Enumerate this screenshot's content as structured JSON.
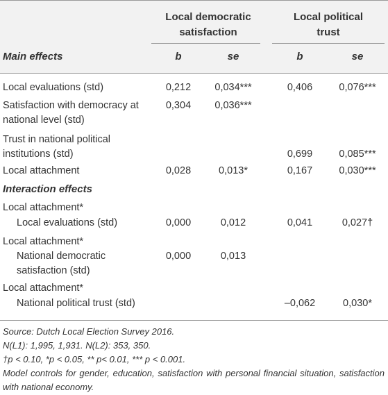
{
  "header": {
    "groups": [
      "Local democratic satisfaction",
      "Local political trust"
    ],
    "section": "Main effects",
    "columns": [
      "b",
      "se",
      "b",
      "se"
    ]
  },
  "main_rows": [
    {
      "label": "Local evaluations (std)",
      "cells": [
        "0,212",
        "0,034***",
        "0,406",
        "0,076***"
      ]
    },
    {
      "label": "Satisfaction with democracy at national level (std)",
      "cells": [
        "0,304",
        "0,036***",
        null,
        null
      ]
    },
    {
      "label": "Trust in national political institutions (std)",
      "cells": [
        null,
        null,
        "0,699",
        "0,085***"
      ]
    },
    {
      "label": "Local attachment",
      "cells": [
        "0,028",
        "0,013*",
        "0,167",
        "0,030***"
      ]
    }
  ],
  "interaction_heading": "Interaction effects",
  "interaction_rows": [
    {
      "label": "Local attachment*",
      "sublabel": "Local evaluations (std)",
      "cells": [
        "0,000",
        "0,012",
        "0,041",
        "0,027†"
      ]
    },
    {
      "label": "Local attachment*",
      "sublabel": "National democratic satisfaction (std)",
      "cells": [
        "0,000",
        "0,013",
        null,
        null
      ]
    },
    {
      "label": "Local attachment*",
      "sublabel": "National political trust (std)",
      "cells": [
        null,
        null,
        "–0,062",
        "0,030*"
      ]
    }
  ],
  "notes": [
    "Source: Dutch Local Election Survey 2016.",
    "N(L1): 1,995, 1,931. N(L2): 353, 350.",
    "†p < 0.10, *p < 0.05, ** p< 0.01, *** p < 0.001.",
    "Model controls for gender, education, satisfaction with personal financial situation, satisfaction with national economy."
  ]
}
